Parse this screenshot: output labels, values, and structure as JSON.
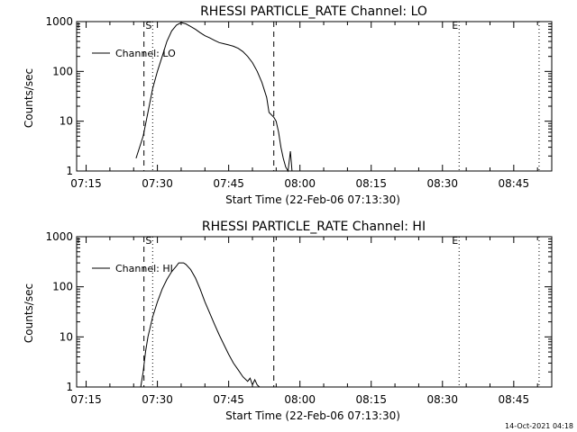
{
  "footer": {
    "timestamp": "14-Oct-2021 04:18"
  },
  "chart_data": [
    {
      "type": "line",
      "title": "RHESSI PARTICLE_RATE Channel: LO",
      "xlabel": "Start Time (22-Feb-06 07:13:30)",
      "ylabel": "Counts/sec",
      "xlim": [
        "07:13",
        "08:53"
      ],
      "ylim": [
        1,
        1000
      ],
      "yscale": "log",
      "xticks": [
        "07:15",
        "07:30",
        "07:45",
        "08:00",
        "08:15",
        "08:30",
        "08:45"
      ],
      "yticks": [
        "1",
        "10",
        "100",
        "1000"
      ],
      "legend": {
        "label": "Channel: LO",
        "position": "top-left"
      },
      "markers": [
        {
          "label": "S",
          "time": "07:29:00",
          "style": "dotted"
        },
        {
          "label": "E",
          "time": "08:33:30",
          "style": "dotted"
        },
        {
          "label": "",
          "time": "07:27:10",
          "style": "dashed"
        },
        {
          "label": "",
          "time": "07:54:30",
          "style": "dashed"
        },
        {
          "label": "",
          "time": "08:50:20",
          "style": "dotted"
        }
      ],
      "series": [
        {
          "name": "Channel: LO",
          "x": [
            "07:25:30",
            "07:27:00",
            "07:28:00",
            "07:29:00",
            "07:30:00",
            "07:31:00",
            "07:32:00",
            "07:33:00",
            "07:34:00",
            "07:35:00",
            "07:36:00",
            "07:37:00",
            "07:38:00",
            "07:39:00",
            "07:40:00",
            "07:41:00",
            "07:42:00",
            "07:43:00",
            "07:44:00",
            "07:45:00",
            "07:46:00",
            "07:47:00",
            "07:48:00",
            "07:49:00",
            "07:50:00",
            "07:51:00",
            "07:52:00",
            "07:53:00",
            "07:53:30",
            "07:54:30",
            "07:55:00",
            "07:55:30",
            "07:56:00",
            "07:56:30",
            "07:57:00",
            "07:57:30",
            "07:58:00",
            "07:58:20"
          ],
          "y": [
            1.8,
            5,
            15,
            45,
            100,
            200,
            400,
            650,
            850,
            950,
            900,
            800,
            700,
            600,
            520,
            470,
            420,
            380,
            360,
            340,
            320,
            290,
            250,
            200,
            150,
            100,
            60,
            30,
            15,
            12,
            10,
            6,
            3,
            1.8,
            1.2,
            1,
            2.5,
            1
          ]
        }
      ]
    },
    {
      "type": "line",
      "title": "RHESSI PARTICLE_RATE Channel: HI",
      "xlabel": "Start Time (22-Feb-06 07:13:30)",
      "ylabel": "Counts/sec",
      "xlim": [
        "07:13",
        "08:53"
      ],
      "ylim": [
        1,
        1000
      ],
      "yscale": "log",
      "xticks": [
        "07:15",
        "07:30",
        "07:45",
        "08:00",
        "08:15",
        "08:30",
        "08:45"
      ],
      "yticks": [
        "1",
        "10",
        "100",
        "1000"
      ],
      "legend": {
        "label": "Channel: HI",
        "position": "top-left"
      },
      "markers": [
        {
          "label": "S",
          "time": "07:29:00",
          "style": "dotted"
        },
        {
          "label": "E",
          "time": "08:33:30",
          "style": "dotted"
        },
        {
          "label": "",
          "time": "07:27:10",
          "style": "dashed"
        },
        {
          "label": "",
          "time": "07:54:30",
          "style": "dashed"
        },
        {
          "label": "",
          "time": "08:50:20",
          "style": "dotted"
        }
      ],
      "series": [
        {
          "name": "Channel: HI",
          "x": [
            "07:26:30",
            "07:27:00",
            "07:27:30",
            "07:28:00",
            "07:29:00",
            "07:30:00",
            "07:31:00",
            "07:32:00",
            "07:33:00",
            "07:34:00",
            "07:34:30",
            "07:35:30",
            "07:36:00",
            "07:37:00",
            "07:38:00",
            "07:39:00",
            "07:40:00",
            "07:41:00",
            "07:42:00",
            "07:43:00",
            "07:44:00",
            "07:45:00",
            "07:46:00",
            "07:47:00",
            "07:48:00",
            "07:49:00",
            "07:49:30",
            "07:50:00",
            "07:50:30",
            "07:51:00",
            "07:51:30"
          ],
          "y": [
            1,
            2,
            5,
            10,
            25,
            50,
            90,
            140,
            200,
            260,
            300,
            300,
            280,
            220,
            150,
            90,
            50,
            30,
            18,
            11,
            7,
            4.5,
            3,
            2.2,
            1.6,
            1.3,
            1.5,
            1.1,
            1.4,
            1.1,
            1
          ]
        }
      ]
    }
  ]
}
